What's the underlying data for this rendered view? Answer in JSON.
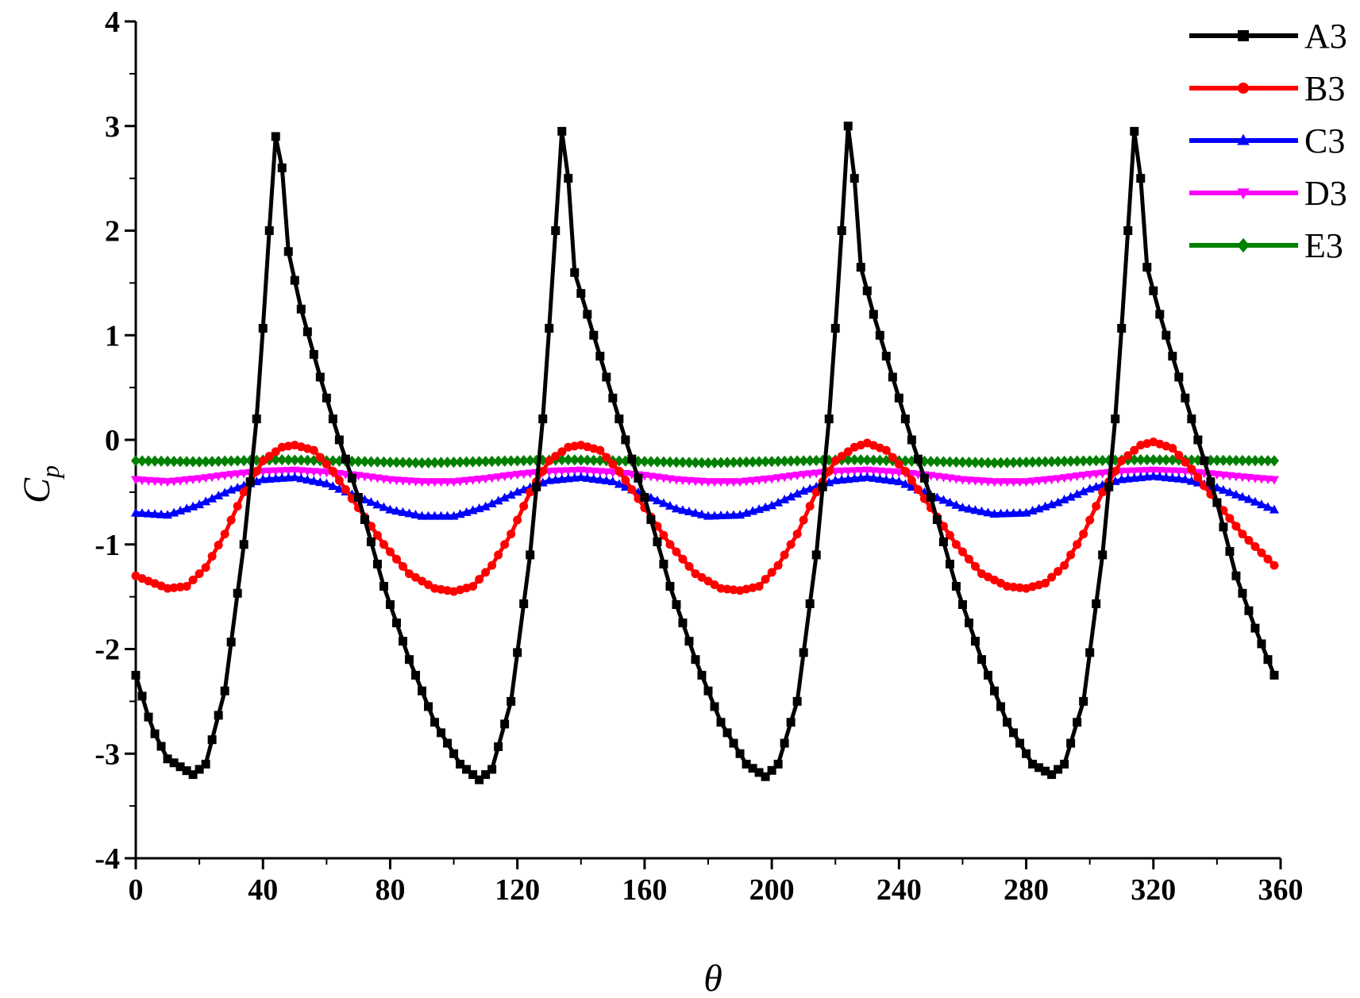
{
  "chart_data": {
    "type": "line",
    "xlabel": "θ",
    "ylabel": {
      "main": "C",
      "sub": "p"
    },
    "xlim": [
      0,
      360
    ],
    "ylim": [
      -4,
      4
    ],
    "x_ticks": [
      0,
      40,
      80,
      120,
      160,
      200,
      240,
      280,
      320,
      360
    ],
    "y_ticks": [
      -4,
      -3,
      -2,
      -1,
      0,
      1,
      2,
      3,
      4
    ],
    "grid": false,
    "legend_position": "top-right",
    "x_step": 2,
    "series": [
      {
        "name": "A3",
        "color": "#000000",
        "marker": "square",
        "keypoints": [
          [
            0,
            -2.25
          ],
          [
            5,
            -2.75
          ],
          [
            10,
            -3.05
          ],
          [
            18,
            -3.2
          ],
          [
            22,
            -3.1
          ],
          [
            28,
            -2.4
          ],
          [
            34,
            -1.0
          ],
          [
            38,
            0.2
          ],
          [
            41,
            1.5
          ],
          [
            43,
            2.5
          ],
          [
            44,
            2.9
          ],
          [
            46,
            2.6
          ],
          [
            48,
            1.8
          ],
          [
            52,
            1.25
          ],
          [
            58,
            0.6
          ],
          [
            64,
            0.0
          ],
          [
            70,
            -0.55
          ],
          [
            78,
            -1.4
          ],
          [
            86,
            -2.1
          ],
          [
            94,
            -2.7
          ],
          [
            102,
            -3.1
          ],
          [
            108,
            -3.25
          ],
          [
            112,
            -3.15
          ],
          [
            118,
            -2.5
          ],
          [
            124,
            -1.1
          ],
          [
            128,
            0.2
          ],
          [
            131,
            1.5
          ],
          [
            133,
            2.5
          ],
          [
            134,
            2.95
          ],
          [
            136,
            2.5
          ],
          [
            138,
            1.6
          ],
          [
            142,
            1.2
          ],
          [
            148,
            0.6
          ],
          [
            154,
            0.0
          ],
          [
            160,
            -0.55
          ],
          [
            168,
            -1.4
          ],
          [
            176,
            -2.1
          ],
          [
            184,
            -2.7
          ],
          [
            192,
            -3.1
          ],
          [
            198,
            -3.22
          ],
          [
            202,
            -3.1
          ],
          [
            208,
            -2.5
          ],
          [
            214,
            -1.1
          ],
          [
            218,
            0.2
          ],
          [
            221,
            1.5
          ],
          [
            223,
            2.5
          ],
          [
            224,
            3.0
          ],
          [
            226,
            2.5
          ],
          [
            228,
            1.65
          ],
          [
            232,
            1.2
          ],
          [
            238,
            0.6
          ],
          [
            244,
            0.0
          ],
          [
            250,
            -0.55
          ],
          [
            258,
            -1.4
          ],
          [
            266,
            -2.1
          ],
          [
            274,
            -2.7
          ],
          [
            282,
            -3.1
          ],
          [
            288,
            -3.2
          ],
          [
            292,
            -3.1
          ],
          [
            298,
            -2.5
          ],
          [
            304,
            -1.1
          ],
          [
            308,
            0.2
          ],
          [
            311,
            1.5
          ],
          [
            313,
            2.5
          ],
          [
            314,
            2.95
          ],
          [
            316,
            2.5
          ],
          [
            318,
            1.65
          ],
          [
            322,
            1.2
          ],
          [
            328,
            0.6
          ],
          [
            334,
            0.0
          ],
          [
            340,
            -0.6
          ],
          [
            346,
            -1.3
          ],
          [
            352,
            -1.8
          ],
          [
            358,
            -2.25
          ]
        ]
      },
      {
        "name": "B3",
        "color": "#ff0000",
        "marker": "circle",
        "keypoints": [
          [
            0,
            -1.3
          ],
          [
            4,
            -1.35
          ],
          [
            10,
            -1.42
          ],
          [
            16,
            -1.4
          ],
          [
            22,
            -1.22
          ],
          [
            28,
            -0.9
          ],
          [
            34,
            -0.5
          ],
          [
            40,
            -0.2
          ],
          [
            46,
            -0.07
          ],
          [
            50,
            -0.05
          ],
          [
            56,
            -0.1
          ],
          [
            62,
            -0.3
          ],
          [
            70,
            -0.65
          ],
          [
            78,
            -1.0
          ],
          [
            86,
            -1.28
          ],
          [
            94,
            -1.42
          ],
          [
            100,
            -1.45
          ],
          [
            106,
            -1.4
          ],
          [
            112,
            -1.2
          ],
          [
            118,
            -0.9
          ],
          [
            124,
            -0.5
          ],
          [
            130,
            -0.2
          ],
          [
            136,
            -0.07
          ],
          [
            140,
            -0.05
          ],
          [
            146,
            -0.1
          ],
          [
            152,
            -0.3
          ],
          [
            160,
            -0.65
          ],
          [
            168,
            -1.0
          ],
          [
            176,
            -1.28
          ],
          [
            184,
            -1.42
          ],
          [
            190,
            -1.44
          ],
          [
            196,
            -1.4
          ],
          [
            202,
            -1.2
          ],
          [
            208,
            -0.9
          ],
          [
            214,
            -0.5
          ],
          [
            220,
            -0.2
          ],
          [
            226,
            -0.07
          ],
          [
            230,
            -0.03
          ],
          [
            236,
            -0.1
          ],
          [
            242,
            -0.3
          ],
          [
            250,
            -0.65
          ],
          [
            258,
            -1.0
          ],
          [
            266,
            -1.28
          ],
          [
            274,
            -1.4
          ],
          [
            280,
            -1.42
          ],
          [
            286,
            -1.37
          ],
          [
            292,
            -1.2
          ],
          [
            298,
            -0.9
          ],
          [
            304,
            -0.5
          ],
          [
            310,
            -0.2
          ],
          [
            316,
            -0.05
          ],
          [
            320,
            -0.02
          ],
          [
            326,
            -0.08
          ],
          [
            332,
            -0.28
          ],
          [
            340,
            -0.6
          ],
          [
            348,
            -0.9
          ],
          [
            358,
            -1.2
          ]
        ]
      },
      {
        "name": "C3",
        "color": "#0000ff",
        "marker": "triangle-up",
        "keypoints": [
          [
            0,
            -0.7
          ],
          [
            10,
            -0.72
          ],
          [
            20,
            -0.62
          ],
          [
            30,
            -0.48
          ],
          [
            40,
            -0.38
          ],
          [
            50,
            -0.36
          ],
          [
            60,
            -0.42
          ],
          [
            70,
            -0.55
          ],
          [
            80,
            -0.67
          ],
          [
            90,
            -0.73
          ],
          [
            100,
            -0.73
          ],
          [
            110,
            -0.64
          ],
          [
            120,
            -0.5
          ],
          [
            130,
            -0.39
          ],
          [
            140,
            -0.36
          ],
          [
            150,
            -0.4
          ],
          [
            160,
            -0.53
          ],
          [
            170,
            -0.66
          ],
          [
            180,
            -0.73
          ],
          [
            190,
            -0.72
          ],
          [
            200,
            -0.63
          ],
          [
            210,
            -0.49
          ],
          [
            220,
            -0.39
          ],
          [
            230,
            -0.36
          ],
          [
            240,
            -0.4
          ],
          [
            250,
            -0.53
          ],
          [
            260,
            -0.65
          ],
          [
            270,
            -0.71
          ],
          [
            280,
            -0.7
          ],
          [
            290,
            -0.6
          ],
          [
            300,
            -0.47
          ],
          [
            310,
            -0.38
          ],
          [
            320,
            -0.35
          ],
          [
            330,
            -0.38
          ],
          [
            340,
            -0.46
          ],
          [
            350,
            -0.57
          ],
          [
            358,
            -0.67
          ]
        ]
      },
      {
        "name": "D3",
        "color": "#ff00ff",
        "marker": "triangle-down",
        "keypoints": [
          [
            0,
            -0.38
          ],
          [
            10,
            -0.4
          ],
          [
            20,
            -0.37
          ],
          [
            30,
            -0.33
          ],
          [
            40,
            -0.3
          ],
          [
            50,
            -0.29
          ],
          [
            60,
            -0.31
          ],
          [
            70,
            -0.34
          ],
          [
            80,
            -0.38
          ],
          [
            90,
            -0.4
          ],
          [
            100,
            -0.4
          ],
          [
            110,
            -0.37
          ],
          [
            120,
            -0.33
          ],
          [
            130,
            -0.3
          ],
          [
            140,
            -0.29
          ],
          [
            150,
            -0.31
          ],
          [
            160,
            -0.34
          ],
          [
            170,
            -0.38
          ],
          [
            180,
            -0.4
          ],
          [
            190,
            -0.4
          ],
          [
            200,
            -0.37
          ],
          [
            210,
            -0.33
          ],
          [
            220,
            -0.3
          ],
          [
            230,
            -0.29
          ],
          [
            240,
            -0.31
          ],
          [
            250,
            -0.34
          ],
          [
            260,
            -0.38
          ],
          [
            270,
            -0.4
          ],
          [
            280,
            -0.4
          ],
          [
            290,
            -0.37
          ],
          [
            300,
            -0.33
          ],
          [
            310,
            -0.3
          ],
          [
            320,
            -0.29
          ],
          [
            330,
            -0.3
          ],
          [
            340,
            -0.33
          ],
          [
            350,
            -0.36
          ],
          [
            358,
            -0.38
          ]
        ]
      },
      {
        "name": "E3",
        "color": "#008000",
        "marker": "diamond",
        "keypoints": [
          [
            0,
            -0.2
          ],
          [
            20,
            -0.21
          ],
          [
            45,
            -0.19
          ],
          [
            90,
            -0.22
          ],
          [
            135,
            -0.19
          ],
          [
            180,
            -0.22
          ],
          [
            225,
            -0.19
          ],
          [
            270,
            -0.22
          ],
          [
            315,
            -0.19
          ],
          [
            358,
            -0.2
          ]
        ]
      }
    ]
  }
}
